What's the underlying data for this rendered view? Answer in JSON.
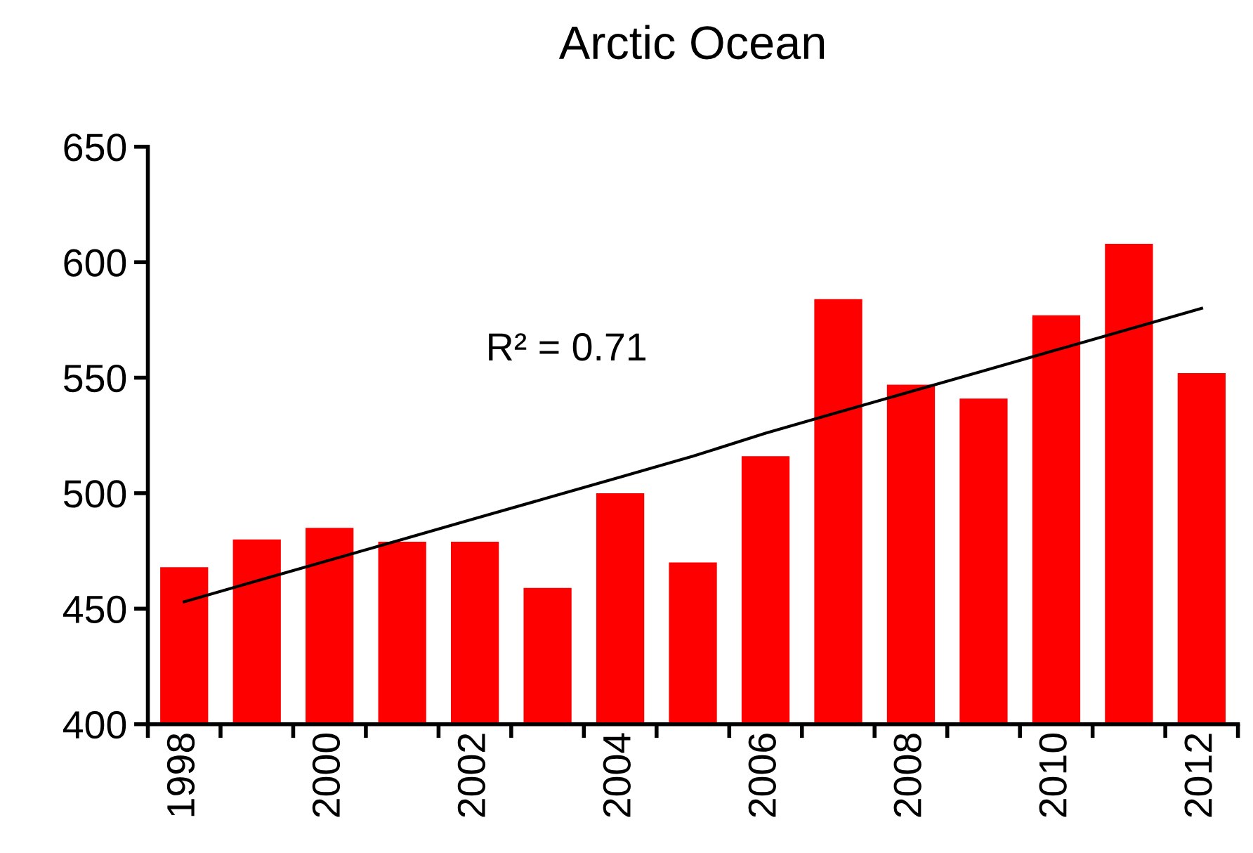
{
  "chart_data": {
    "type": "bar",
    "title": "Arctic Ocean",
    "categories": [
      "1998",
      null,
      "2000",
      null,
      "2002",
      null,
      "2004",
      null,
      "2006",
      null,
      "2008",
      null,
      "2010",
      null,
      "2012"
    ],
    "series": [
      {
        "color": "#ff0000",
        "values": [
          468,
          480,
          485,
          479,
          479,
          459,
          500,
          470,
          516,
          584,
          547,
          541,
          577,
          608,
          552
        ]
      },
      {
        "type": "line",
        "color": "#000000",
        "values": [
          453,
          462,
          471,
          480,
          489,
          498,
          507,
          516,
          526,
          535,
          544,
          553,
          562,
          571,
          580
        ]
      }
    ],
    "ylim": [
      400,
      650
    ],
    "yticks": [
      400,
      450,
      500,
      550,
      600,
      650
    ],
    "grid": false,
    "legend": false,
    "annotations": [
      "R² = 0.71"
    ]
  }
}
